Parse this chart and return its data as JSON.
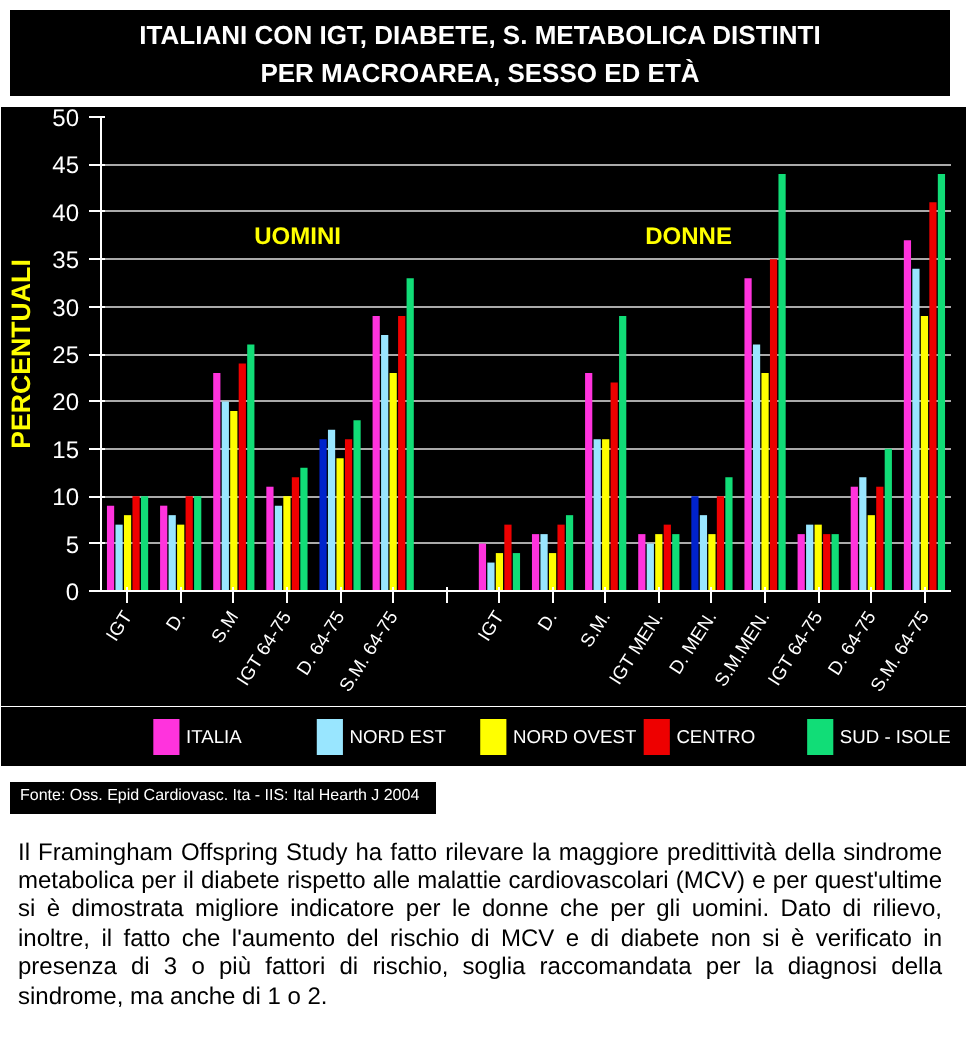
{
  "chart_data": {
    "type": "bar",
    "title": "ITALIANI CON IGT, DIABETE, S. METABOLICA DISTINTI PER MACROAREA, SESSO ED ETÀ",
    "ylabel": "PERCENTUALI",
    "categories": [
      "IGT",
      "D.",
      "S.M",
      "IGT 64-75",
      "D. 64-75",
      "S.M. 64-75",
      null,
      "IGT",
      "D.",
      "S.M.",
      "IGT MEN.",
      "D. MEN.",
      "S.M.MEN.",
      "IGT 64-75",
      "D. 64-75",
      "S.M. 64-75"
    ],
    "series": [
      {
        "name": "ITALIA",
        "color": "#ff33dd",
        "colors": [
          "#ff33dd",
          "#ff33dd",
          "#ff33dd",
          "#ff33dd",
          "#0022cc",
          "#ff33dd",
          "#ff33dd",
          "#ff33dd",
          "#ff33dd",
          "#ff33dd",
          "#ff33dd",
          "#0022cc",
          "#ff33dd",
          "#ff33dd",
          "#ff33dd",
          "#ff33dd"
        ],
        "values": [
          9,
          9,
          23,
          11,
          16,
          29,
          null,
          5,
          6,
          23,
          6,
          10,
          33,
          6,
          11,
          37
        ]
      },
      {
        "name": "NORD EST",
        "color": "#99e6ff",
        "values": [
          7,
          8,
          20,
          9,
          17,
          27,
          null,
          3,
          6,
          16,
          5,
          8,
          26,
          7,
          12,
          34
        ]
      },
      {
        "name": "NORD OVEST",
        "color": "#ffff00",
        "values": [
          8,
          7,
          19,
          10,
          14,
          23,
          null,
          4,
          4,
          16,
          6,
          6,
          23,
          7,
          8,
          29
        ]
      },
      {
        "name": "CENTRO",
        "color": "#ee0000",
        "values": [
          10,
          10,
          24,
          12,
          16,
          29,
          null,
          7,
          7,
          22,
          7,
          10,
          35,
          6,
          11,
          41
        ]
      },
      {
        "name": "SUD - ISOLE",
        "color": "#11dd77",
        "values": [
          10,
          10,
          26,
          13,
          18,
          33,
          null,
          4,
          8,
          29,
          6,
          12,
          44,
          6,
          15,
          44
        ]
      }
    ],
    "ylim": [
      0,
      50
    ],
    "yticks": [
      0,
      5,
      10,
      15,
      20,
      25,
      30,
      35,
      40,
      45,
      50
    ],
    "grid": "y",
    "legend": "bottom",
    "annotations": [
      "UOMINI",
      "DONNE",
      "Fonte: Oss. Epid Cardiovasc. Ita -  IIS: Ital Hearth J  2004",
      "Il Framingham Offspring Study ha fatto rilevare la maggiore predittività della sindrome metabolica per il diabete rispetto alle malattie cardiovascolari (MCV) e per quest'ultime si è dimostrata migliore indicatore per le donne che per gli uomini. Dato di rilievo, inoltre, il fatto che l'aumento del rischio di MCV e di diabete non si è verificato in presenza di 3 o più fattori di rischio, soglia raccomandata per la diagnosi della sindrome, ma anche di 1 o 2."
    ]
  }
}
